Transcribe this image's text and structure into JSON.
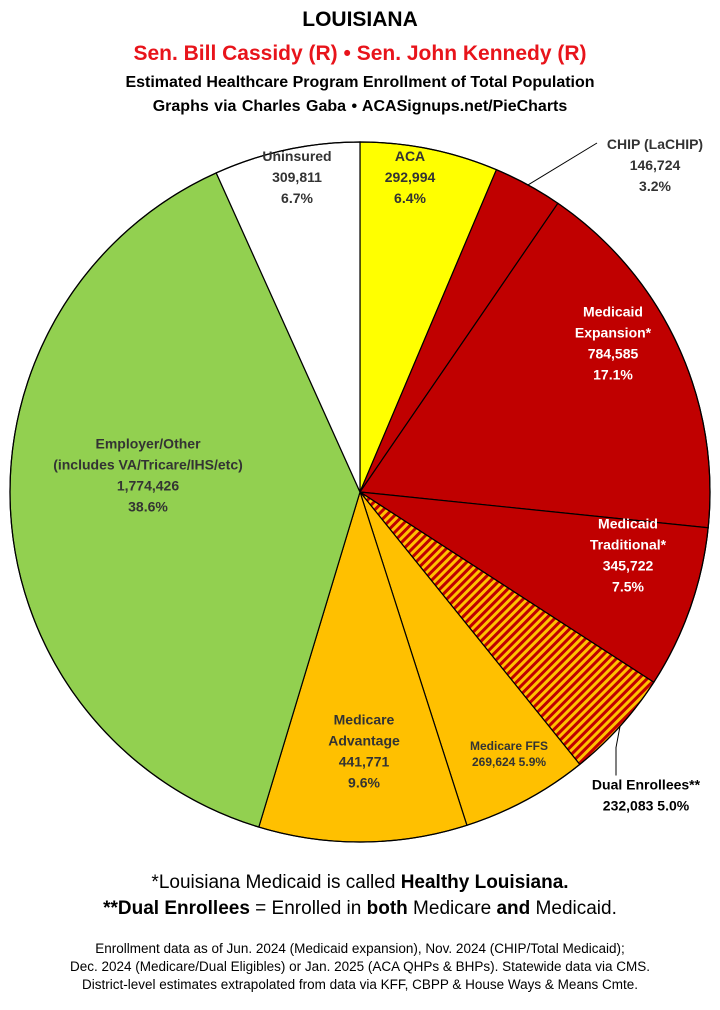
{
  "header": {
    "title": "LOUISIANA",
    "senators": "Sen. Bill Cassidy (R) • Sen. John Kennedy (R)",
    "subtitle": "Estimated Healthcare Program Enrollment of Total Population",
    "credit": "Graphs via Charles Gaba   •   ACASignups.net/PieCharts"
  },
  "chart_data": {
    "type": "pie",
    "start_angle_deg": 0,
    "direction": "clockwise",
    "slices": [
      {
        "key": "aca",
        "lines": [
          "ACA",
          "292,994",
          "6.4%"
        ],
        "value": 292994,
        "percent": 6.4,
        "color": "#ffff00",
        "label_color": "#333333"
      },
      {
        "key": "chip",
        "lines": [
          "CHIP (LaCHIP)",
          "146,724",
          "3.2%"
        ],
        "value": 146724,
        "percent": 3.2,
        "color": "#c00000",
        "label_color": "#333333"
      },
      {
        "key": "medicaid-expansion",
        "lines": [
          "Medicaid",
          "Expansion*",
          "784,585",
          "17.1%"
        ],
        "value": 784585,
        "percent": 17.1,
        "color": "#c00000",
        "label_color": "#ffffff"
      },
      {
        "key": "medicaid-traditional",
        "lines": [
          "Medicaid",
          "Traditional*",
          "345,722",
          "7.5%"
        ],
        "value": 345722,
        "percent": 7.5,
        "color": "#c00000",
        "label_color": "#ffffff"
      },
      {
        "key": "dual-enrollees",
        "lines": [
          "Dual Enrollees**",
          "232,083 5.0%"
        ],
        "value": 232083,
        "percent": 5.0,
        "color": "hatched #c00000 / #ffc000",
        "label_color": "#000000"
      },
      {
        "key": "medicare-ffs",
        "lines": [
          "Medicare FFS",
          "269,624 5.9%"
        ],
        "value": 269624,
        "percent": 5.9,
        "color": "#ffc000",
        "label_color": "#333333"
      },
      {
        "key": "medicare-advantage",
        "lines": [
          "Medicare",
          "Advantage",
          "441,771",
          "9.6%"
        ],
        "value": 441771,
        "percent": 9.6,
        "color": "#ffc000",
        "label_color": "#333333"
      },
      {
        "key": "employer-other",
        "lines": [
          "Employer/Other",
          "(includes VA/Tricare/IHS/etc)",
          "1,774,426",
          "38.6%"
        ],
        "value": 1774426,
        "percent": 38.6,
        "color": "#92d050",
        "label_color": "#333333"
      },
      {
        "key": "uninsured",
        "lines": [
          "Uninsured",
          "309,811",
          "6.7%"
        ],
        "value": 309811,
        "percent": 6.7,
        "color": "#ffffff",
        "label_color": "#333333"
      }
    ]
  },
  "footer": {
    "note1_pre": "*Louisiana Medicaid is called ",
    "note1_bold": "Healthy Louisiana.",
    "note2_b1": "**Dual Enrollees",
    "note2_t1": " = Enrolled in ",
    "note2_b2": "both",
    "note2_t2": " Medicare ",
    "note2_b3": "and",
    "note2_t3": " Medicaid.",
    "source_line1": "Enrollment data as of Jun. 2024 (Medicaid expansion), Nov. 2024 (CHIP/Total Medicaid);",
    "source_line2": "Dec. 2024 (Medicare/Dual Eligibles) or Jan. 2025 (ACA QHPs & BHPs). Statewide data via CMS.",
    "source_line3": "District-level estimates extrapolated from data via KFF, CBPP & House Ways & Means Cmte."
  }
}
